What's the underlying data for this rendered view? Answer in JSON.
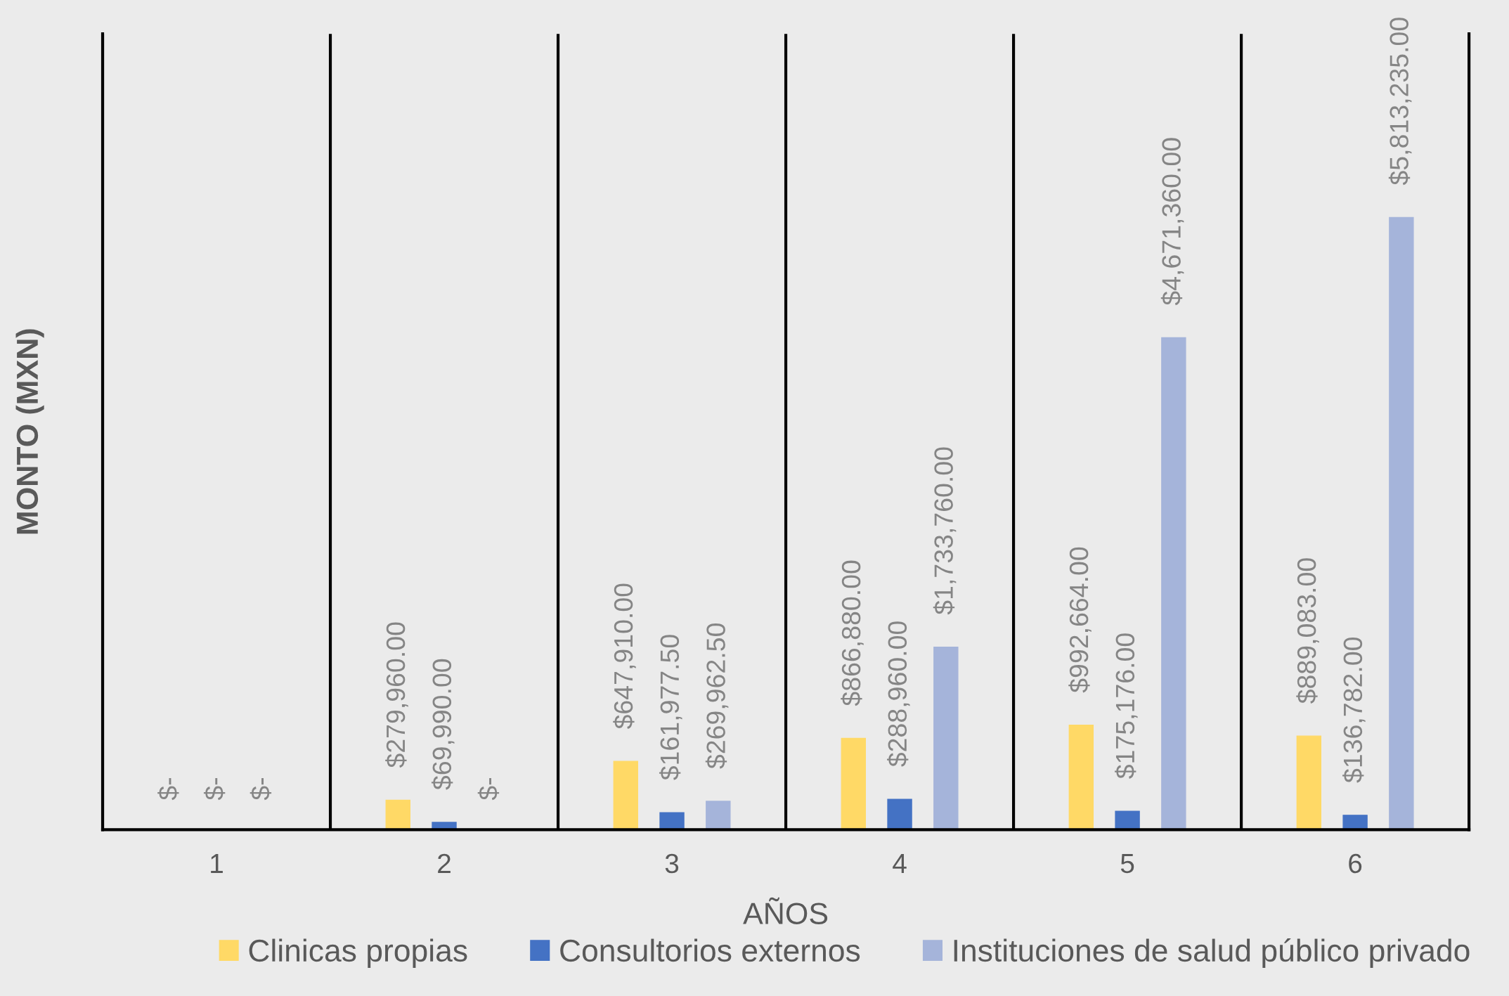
{
  "chart_data": {
    "type": "bar",
    "xlabel": "AÑOS",
    "ylabel": "MONTO (MXN)",
    "categories": [
      "1",
      "2",
      "3",
      "4",
      "5",
      "6"
    ],
    "series": [
      {
        "name": "Clinicas propias",
        "color": "#ffd966",
        "values": [
          0,
          279960,
          647910,
          866880,
          992664,
          889083
        ],
        "value_labels": [
          "$-",
          "$279,960.00",
          "$647,910.00",
          "$866,880.00",
          "$992,664.00",
          "$889,083.00"
        ]
      },
      {
        "name": "Consultorios externos",
        "color": "#4472c4",
        "values": [
          0,
          69990,
          161977.5,
          288960,
          175176,
          136782
        ],
        "value_labels": [
          "$-",
          "$69,990.00",
          "$161,977.50",
          "$288,960.00",
          "$175,176.00",
          "$136,782.00"
        ]
      },
      {
        "name": "Instituciones de salud público privado",
        "color": "#a5b4da",
        "values": [
          0,
          0,
          269962.5,
          1733760,
          4671360,
          5813235
        ],
        "value_labels": [
          "$-",
          "$-",
          "$269,962.50",
          "$1,733,760.00",
          "$4,671,360.00",
          "$5,813,235.00"
        ]
      }
    ],
    "grid": "x",
    "legend": "bottom",
    "tick_labels": "x"
  }
}
